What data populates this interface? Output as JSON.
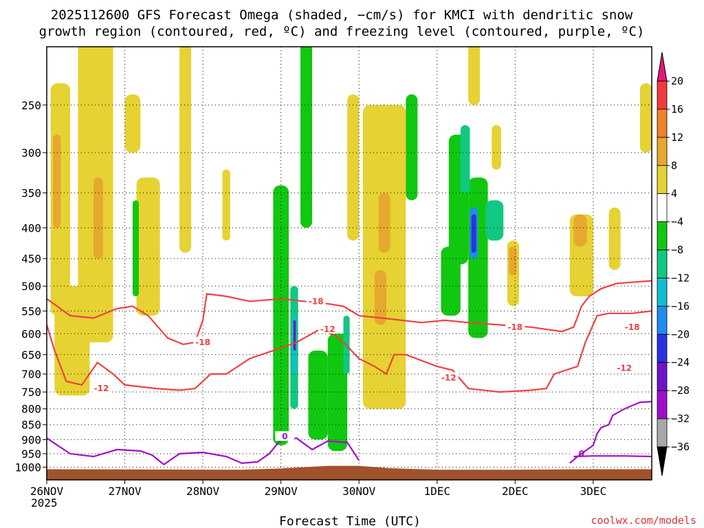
{
  "chart_data": {
    "type": "heatmap",
    "title": "2025112600 GFS Forecast Omega (shaded, −cm/s) for KMCI with dendritic snow",
    "title_line2": "growth region (contoured, red, ºC) and freezing level (contoured, purple, ºC)",
    "xlabel": "Forecast Time (UTC)",
    "ylabel": "",
    "credit": "coolwx.com/models",
    "x_unit": "days since 2025-11-26 00Z",
    "xlim": [
      0,
      7.75
    ],
    "x_ticks": [
      {
        "value": 0,
        "label": "26NOV",
        "sublabel": "2025"
      },
      {
        "value": 1,
        "label": "27NOV"
      },
      {
        "value": 2,
        "label": "28NOV"
      },
      {
        "value": 3,
        "label": "29NOV"
      },
      {
        "value": 4,
        "label": "30NOV"
      },
      {
        "value": 5,
        "label": "1DEC"
      },
      {
        "value": 6,
        "label": "2DEC"
      },
      {
        "value": 7,
        "label": "3DEC"
      }
    ],
    "y_unit": "hPa",
    "ylim": [
      1050,
      200
    ],
    "y_ticks": [
      250,
      300,
      350,
      400,
      450,
      500,
      550,
      600,
      650,
      700,
      750,
      800,
      850,
      900,
      950,
      1000
    ],
    "colorbar": {
      "labels": [
        "20",
        "16",
        "12",
        "8",
        "4",
        "−4",
        "−8",
        "−12",
        "−16",
        "−20",
        "−24",
        "−28",
        "−32",
        "−36"
      ],
      "bins": [
        {
          "range": ">20",
          "color": "#e0187a"
        },
        {
          "range": "16-20",
          "color": "#f03c3c"
        },
        {
          "range": "12-16",
          "color": "#f08228"
        },
        {
          "range": "8-12",
          "color": "#e6a82e"
        },
        {
          "range": "4-8",
          "color": "#e6d232"
        },
        {
          "range": "-4-4",
          "color": "#ffffff"
        },
        {
          "range": "-8--4",
          "color": "#10c810"
        },
        {
          "range": "-12--8",
          "color": "#10c882"
        },
        {
          "range": "-16--12",
          "color": "#10bed2"
        },
        {
          "range": "-20--16",
          "color": "#1e8cf0"
        },
        {
          "range": "-24--20",
          "color": "#2a32dc"
        },
        {
          "range": "-28--24",
          "color": "#6e14c8"
        },
        {
          "range": "-32--28",
          "color": "#a00fc8"
        },
        {
          "range": "-36--32",
          "color": "#a8a8a8"
        },
        {
          "range": "<-36",
          "color": "#000000"
        }
      ]
    },
    "terrain": {
      "color": "#a0522d",
      "points": [
        [
          0,
          1008
        ],
        [
          2.5,
          1010
        ],
        [
          3.0,
          1005
        ],
        [
          3.6,
          995
        ],
        [
          4.0,
          995
        ],
        [
          4.4,
          1004
        ],
        [
          5.0,
          1010
        ],
        [
          6.0,
          1010
        ],
        [
          7.0,
          1008
        ],
        [
          7.75,
          1008
        ]
      ]
    },
    "shaded_regions": [
      {
        "omega": 6,
        "color": "#e6d232",
        "x0": 0.05,
        "x1": 0.3,
        "p0": 230,
        "p1": 560
      },
      {
        "omega": 6,
        "color": "#e6d232",
        "x0": 0.1,
        "x1": 0.55,
        "p0": 500,
        "p1": 760
      },
      {
        "omega": 6,
        "color": "#e6d232",
        "x0": 0.4,
        "x1": 0.85,
        "p0": 180,
        "p1": 620
      },
      {
        "omega": 10,
        "color": "#e6a82e",
        "x0": 0.08,
        "x1": 0.18,
        "p0": 280,
        "p1": 400
      },
      {
        "omega": 10,
        "color": "#e6a82e",
        "x0": 0.6,
        "x1": 0.72,
        "p0": 330,
        "p1": 450
      },
      {
        "omega": 6,
        "color": "#e6d232",
        "x0": 1.0,
        "x1": 1.2,
        "p0": 240,
        "p1": 300
      },
      {
        "omega": 6,
        "color": "#e6d232",
        "x0": 1.15,
        "x1": 1.45,
        "p0": 330,
        "p1": 560
      },
      {
        "omega": 6,
        "color": "#e6d232",
        "x0": 1.7,
        "x1": 1.85,
        "p0": 180,
        "p1": 440
      },
      {
        "omega": -6,
        "color": "#10c810",
        "x0": 1.1,
        "x1": 1.18,
        "p0": 360,
        "p1": 520
      },
      {
        "omega": 6,
        "color": "#e6d232",
        "x0": 2.25,
        "x1": 2.35,
        "p0": 320,
        "p1": 420
      },
      {
        "omega": -6,
        "color": "#10c810",
        "x0": 2.9,
        "x1": 3.1,
        "p0": 340,
        "p1": 920
      },
      {
        "omega": -6,
        "color": "#10c810",
        "x0": 3.25,
        "x1": 3.4,
        "p0": 180,
        "p1": 400
      },
      {
        "omega": -10,
        "color": "#10c882",
        "x0": 3.12,
        "x1": 3.22,
        "p0": 500,
        "p1": 800
      },
      {
        "omega": -14,
        "color": "#10bed2",
        "x0": 3.15,
        "x1": 3.2,
        "p0": 560,
        "p1": 700
      },
      {
        "omega": -26,
        "color": "#6e14c8",
        "x0": 3.16,
        "x1": 3.19,
        "p0": 570,
        "p1": 640
      },
      {
        "omega": -6,
        "color": "#10c810",
        "x0": 3.35,
        "x1": 3.6,
        "p0": 640,
        "p1": 900
      },
      {
        "omega": -6,
        "color": "#10c810",
        "x0": 3.6,
        "x1": 3.85,
        "p0": 600,
        "p1": 940
      },
      {
        "omega": -10,
        "color": "#10c882",
        "x0": 3.8,
        "x1": 3.88,
        "p0": 560,
        "p1": 700
      },
      {
        "omega": 6,
        "color": "#e6d232",
        "x0": 3.85,
        "x1": 4.0,
        "p0": 240,
        "p1": 420
      },
      {
        "omega": 6,
        "color": "#e6d232",
        "x0": 4.05,
        "x1": 4.6,
        "p0": 250,
        "p1": 800
      },
      {
        "omega": 10,
        "color": "#e6a82e",
        "x0": 4.2,
        "x1": 4.35,
        "p0": 470,
        "p1": 580
      },
      {
        "omega": 10,
        "color": "#e6a82e",
        "x0": 4.25,
        "x1": 4.4,
        "p0": 350,
        "p1": 440
      },
      {
        "omega": -6,
        "color": "#10c810",
        "x0": 4.6,
        "x1": 4.75,
        "p0": 240,
        "p1": 360
      },
      {
        "omega": -6,
        "color": "#10c810",
        "x0": 5.05,
        "x1": 5.3,
        "p0": 430,
        "p1": 560
      },
      {
        "omega": -6,
        "color": "#10c810",
        "x0": 5.15,
        "x1": 5.4,
        "p0": 280,
        "p1": 460
      },
      {
        "omega": -6,
        "color": "#10c810",
        "x0": 5.4,
        "x1": 5.65,
        "p0": 330,
        "p1": 610
      },
      {
        "omega": -10,
        "color": "#10c882",
        "x0": 5.3,
        "x1": 5.42,
        "p0": 270,
        "p1": 350
      },
      {
        "omega": -10,
        "color": "#10c882",
        "x0": 5.62,
        "x1": 5.85,
        "p0": 360,
        "p1": 420
      },
      {
        "omega": -18,
        "color": "#1e8cf0",
        "x0": 5.42,
        "x1": 5.52,
        "p0": 370,
        "p1": 450
      },
      {
        "omega": -22,
        "color": "#2a32dc",
        "x0": 5.44,
        "x1": 5.5,
        "p0": 380,
        "p1": 440
      },
      {
        "omega": 6,
        "color": "#e6d232",
        "x0": 5.4,
        "x1": 5.55,
        "p0": 180,
        "p1": 250
      },
      {
        "omega": 6,
        "color": "#e6d232",
        "x0": 5.7,
        "x1": 5.82,
        "p0": 270,
        "p1": 320
      },
      {
        "omega": 6,
        "color": "#e6d232",
        "x0": 5.9,
        "x1": 6.05,
        "p0": 420,
        "p1": 540
      },
      {
        "omega": 10,
        "color": "#e6a82e",
        "x0": 5.92,
        "x1": 6.02,
        "p0": 430,
        "p1": 480
      },
      {
        "omega": 6,
        "color": "#e6d232",
        "x0": 6.7,
        "x1": 7.0,
        "p0": 380,
        "p1": 520
      },
      {
        "omega": 10,
        "color": "#e6a82e",
        "x0": 6.75,
        "x1": 6.92,
        "p0": 380,
        "p1": 430
      },
      {
        "omega": 6,
        "color": "#e6d232",
        "x0": 7.2,
        "x1": 7.35,
        "p0": 370,
        "p1": 470
      },
      {
        "omega": 6,
        "color": "#e6d232",
        "x0": 7.6,
        "x1": 7.75,
        "p0": 230,
        "p1": 300
      }
    ],
    "contours": [
      {
        "label": "-18",
        "color": "#f04040",
        "field": "dendritic",
        "label_at": [
          [
            2.0,
            620
          ],
          [
            3.45,
            530
          ],
          [
            6.0,
            585
          ],
          [
            7.5,
            585
          ]
        ],
        "points": [
          [
            0,
            525
          ],
          [
            0.3,
            560
          ],
          [
            0.6,
            565
          ],
          [
            0.9,
            545
          ],
          [
            1.1,
            540
          ],
          [
            1.3,
            560
          ],
          [
            1.55,
            610
          ],
          [
            1.75,
            625
          ],
          [
            1.9,
            620
          ],
          [
            2.0,
            570
          ],
          [
            2.05,
            515
          ],
          [
            2.3,
            520
          ],
          [
            2.6,
            530
          ],
          [
            3.0,
            525
          ],
          [
            3.3,
            530
          ],
          [
            3.6,
            535
          ],
          [
            3.8,
            540
          ],
          [
            4.0,
            560
          ],
          [
            4.3,
            565
          ],
          [
            4.8,
            575
          ],
          [
            5.1,
            570
          ],
          [
            5.4,
            575
          ],
          [
            5.8,
            580
          ],
          [
            6.2,
            585
          ],
          [
            6.6,
            595
          ],
          [
            6.75,
            585
          ],
          [
            6.85,
            540
          ],
          [
            6.95,
            520
          ],
          [
            7.1,
            505
          ],
          [
            7.3,
            495
          ],
          [
            7.75,
            490
          ]
        ]
      },
      {
        "label": "-12",
        "color": "#f04040",
        "field": "dendritic",
        "label_at": [
          [
            0.7,
            740
          ],
          [
            3.6,
            590
          ],
          [
            5.15,
            710
          ],
          [
            7.4,
            685
          ]
        ],
        "points": [
          [
            0,
            580
          ],
          [
            0.1,
            640
          ],
          [
            0.25,
            720
          ],
          [
            0.45,
            730
          ],
          [
            0.65,
            670
          ],
          [
            0.85,
            700
          ],
          [
            1.0,
            730
          ],
          [
            1.4,
            740
          ],
          [
            1.7,
            745
          ],
          [
            1.9,
            740
          ],
          [
            2.1,
            700
          ],
          [
            2.3,
            700
          ],
          [
            2.6,
            660
          ],
          [
            2.9,
            640
          ],
          [
            3.2,
            620
          ],
          [
            3.5,
            590
          ],
          [
            3.7,
            605
          ],
          [
            3.8,
            620
          ],
          [
            4.0,
            660
          ],
          [
            4.2,
            680
          ],
          [
            4.35,
            700
          ],
          [
            4.45,
            650
          ],
          [
            4.6,
            650
          ],
          [
            5.0,
            680
          ],
          [
            5.2,
            690
          ],
          [
            5.4,
            740
          ],
          [
            5.8,
            750
          ],
          [
            6.2,
            745
          ],
          [
            6.4,
            740
          ],
          [
            6.5,
            700
          ],
          [
            6.8,
            680
          ],
          [
            6.9,
            620
          ],
          [
            7.05,
            560
          ],
          [
            7.2,
            555
          ],
          [
            7.5,
            555
          ],
          [
            7.75,
            550
          ]
        ]
      },
      {
        "label": "0",
        "color": "#a00fc8",
        "field": "freezing",
        "label_at": [
          [
            3.05,
            890
          ],
          [
            6.85,
            950
          ]
        ],
        "points": [
          [
            0,
            895
          ],
          [
            0.3,
            950
          ],
          [
            0.6,
            960
          ],
          [
            0.9,
            935
          ],
          [
            1.2,
            940
          ],
          [
            1.35,
            955
          ],
          [
            1.5,
            990
          ],
          [
            1.7,
            950
          ],
          [
            2.0,
            945
          ],
          [
            2.3,
            960
          ],
          [
            2.5,
            985
          ],
          [
            2.7,
            980
          ],
          [
            2.85,
            950
          ],
          [
            3.0,
            900
          ],
          [
            3.2,
            895
          ],
          [
            3.4,
            935
          ],
          [
            3.6,
            905
          ],
          [
            3.85,
            910
          ],
          [
            4.0,
            975
          ]
        ]
      },
      {
        "label": "0",
        "color": "#a00fc8",
        "field": "freezing",
        "label_at": [],
        "points": [
          [
            6.7,
            985
          ],
          [
            6.8,
            960
          ],
          [
            7.0,
            920
          ],
          [
            7.05,
            880
          ],
          [
            7.1,
            860
          ],
          [
            7.2,
            850
          ],
          [
            7.25,
            820
          ],
          [
            7.4,
            800
          ],
          [
            7.5,
            790
          ],
          [
            7.6,
            780
          ],
          [
            7.75,
            778
          ]
        ]
      },
      {
        "label": "0",
        "color": "#a00fc8",
        "field": "freezing",
        "label_at": [],
        "points": [
          [
            6.75,
            960
          ],
          [
            7.0,
            958
          ],
          [
            7.4,
            958
          ],
          [
            7.75,
            960
          ]
        ]
      }
    ]
  }
}
